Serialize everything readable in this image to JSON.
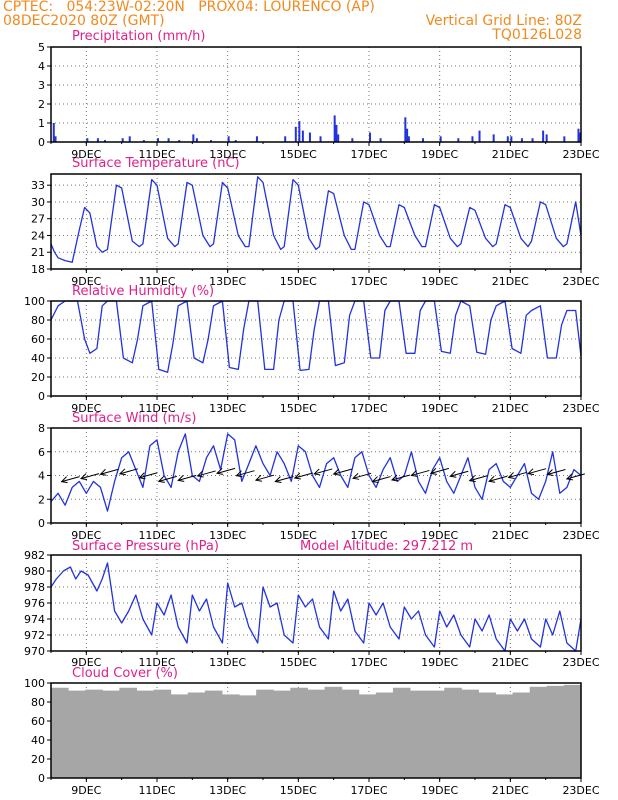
{
  "header": {
    "line1_left": "CPTEC:   054:23W-02:20N   PROX04: LOURENCO (AP)",
    "line2_left": "08DEC2020 80Z (GMT)",
    "line2_right": "Vertical Grid Line: 80Z",
    "line3_right": "TQ0126L028",
    "model_altitude": "Model Altitude: 297.212 m"
  },
  "colors": {
    "header": "#f08a1e",
    "panel_title": "#e0208a",
    "series": "#2233dd",
    "cloud_fill": "#a6a6a6"
  },
  "x_axis": {
    "start_day": 8,
    "end_day": 23,
    "ticks": [
      "9DEC",
      "11DEC",
      "13DEC",
      "15DEC",
      "17DEC",
      "19DEC",
      "21DEC",
      "23DEC"
    ],
    "tick_days": [
      9,
      11,
      13,
      15,
      17,
      19,
      21,
      23
    ]
  },
  "chart_data": [
    {
      "type": "bar",
      "title": "Precipitation (mm/h)",
      "ylim": [
        0,
        5
      ],
      "yticks": [
        0,
        1,
        2,
        3,
        4,
        5
      ],
      "x": [
        8.05,
        8.1,
        9.0,
        9.3,
        9.5,
        10.0,
        10.2,
        10.6,
        11.0,
        11.3,
        11.6,
        12.0,
        12.1,
        12.5,
        13.0,
        13.2,
        13.8,
        14.6,
        14.9,
        15.0,
        15.1,
        15.3,
        15.6,
        16.0,
        16.05,
        16.1,
        16.5,
        17.0,
        17.3,
        18.0,
        18.05,
        18.1,
        18.5,
        19.0,
        19.5,
        19.9,
        20.1,
        20.5,
        20.9,
        21.0,
        21.3,
        21.6,
        21.9,
        22.0,
        22.5,
        22.9,
        22.95
      ],
      "values": [
        1.0,
        0.3,
        0.2,
        0.2,
        0.1,
        0.2,
        0.3,
        0.1,
        0.2,
        0.2,
        0.1,
        0.4,
        0.2,
        0.1,
        0.3,
        0.1,
        0.3,
        0.3,
        0.8,
        1.1,
        0.6,
        0.5,
        0.3,
        1.4,
        0.9,
        0.4,
        0.2,
        0.5,
        0.2,
        1.3,
        0.7,
        0.3,
        0.2,
        0.3,
        0.2,
        0.3,
        0.6,
        0.4,
        0.3,
        0.3,
        0.2,
        0.2,
        0.6,
        0.4,
        0.3,
        0.7,
        0.5
      ],
      "grid": true
    },
    {
      "type": "line",
      "title": "Surface Temperature (nC)",
      "ylim": [
        18,
        35
      ],
      "yticks": [
        18,
        21,
        24,
        27,
        30,
        33
      ],
      "x": [
        8.0,
        8.1,
        8.2,
        8.4,
        8.6,
        8.8,
        8.95,
        9.1,
        9.3,
        9.45,
        9.6,
        9.85,
        10.0,
        10.3,
        10.5,
        10.6,
        10.85,
        11.0,
        11.3,
        11.5,
        11.6,
        11.85,
        12.0,
        12.3,
        12.5,
        12.6,
        12.85,
        13.0,
        13.3,
        13.5,
        13.6,
        13.85,
        14.0,
        14.3,
        14.5,
        14.6,
        14.85,
        15.0,
        15.3,
        15.5,
        15.6,
        15.85,
        16.0,
        16.3,
        16.5,
        16.6,
        16.85,
        17.0,
        17.3,
        17.5,
        17.6,
        17.85,
        18.0,
        18.3,
        18.5,
        18.6,
        18.85,
        19.0,
        19.3,
        19.5,
        19.6,
        19.85,
        20.0,
        20.3,
        20.5,
        20.6,
        20.85,
        21.0,
        21.3,
        21.5,
        21.6,
        21.85,
        22.0,
        22.3,
        22.5,
        22.6,
        22.85,
        23.0
      ],
      "values": [
        22.5,
        21.0,
        20.0,
        19.5,
        19.2,
        25.0,
        29.0,
        28.0,
        22.0,
        21.0,
        21.5,
        33.0,
        32.5,
        23.0,
        22.0,
        22.5,
        34.0,
        33.0,
        23.5,
        22.0,
        22.5,
        33.5,
        33.0,
        24.0,
        22.0,
        22.5,
        33.5,
        32.5,
        24.0,
        22.0,
        22.0,
        34.5,
        33.5,
        24.0,
        21.5,
        22.0,
        34.0,
        33.0,
        23.5,
        21.5,
        22.0,
        32.0,
        31.5,
        24.0,
        21.5,
        21.5,
        30.0,
        29.5,
        24.0,
        22.0,
        22.0,
        29.5,
        29.0,
        24.0,
        22.0,
        22.0,
        29.5,
        29.0,
        23.5,
        22.0,
        22.5,
        29.0,
        28.5,
        23.5,
        22.0,
        22.5,
        29.5,
        29.0,
        23.5,
        22.0,
        23.0,
        30.0,
        29.5,
        23.5,
        22.0,
        22.5,
        30.0,
        24.0
      ],
      "grid": true
    },
    {
      "type": "line",
      "title": "Relative Humidity (%)",
      "ylim": [
        0,
        100
      ],
      "yticks": [
        0,
        20,
        40,
        60,
        80,
        100
      ],
      "x": [
        8.0,
        8.2,
        8.4,
        8.6,
        8.75,
        8.95,
        9.1,
        9.3,
        9.45,
        9.6,
        9.85,
        10.05,
        10.3,
        10.45,
        10.6,
        10.85,
        11.05,
        11.3,
        11.45,
        11.6,
        11.85,
        12.05,
        12.3,
        12.45,
        12.6,
        12.85,
        13.05,
        13.3,
        13.45,
        13.6,
        13.85,
        14.05,
        14.3,
        14.45,
        14.6,
        14.85,
        15.05,
        15.3,
        15.45,
        15.6,
        15.85,
        16.05,
        16.3,
        16.45,
        16.6,
        16.85,
        17.05,
        17.3,
        17.45,
        17.6,
        17.85,
        18.05,
        18.3,
        18.45,
        18.6,
        18.85,
        19.05,
        19.3,
        19.45,
        19.6,
        19.85,
        20.05,
        20.3,
        20.45,
        20.6,
        20.85,
        21.05,
        21.3,
        21.45,
        21.6,
        21.85,
        22.05,
        22.3,
        22.45,
        22.6,
        22.85,
        23.0
      ],
      "values": [
        80,
        95,
        100,
        100,
        100,
        60,
        45,
        50,
        95,
        100,
        100,
        40,
        35,
        60,
        95,
        100,
        28,
        25,
        55,
        95,
        100,
        40,
        35,
        60,
        95,
        100,
        30,
        28,
        70,
        100,
        100,
        28,
        28,
        80,
        100,
        100,
        27,
        28,
        70,
        100,
        100,
        32,
        35,
        85,
        100,
        100,
        40,
        40,
        90,
        100,
        100,
        45,
        45,
        90,
        100,
        100,
        47,
        45,
        85,
        100,
        95,
        46,
        44,
        80,
        95,
        100,
        50,
        45,
        85,
        90,
        95,
        40,
        40,
        75,
        90,
        90,
        42
      ],
      "grid": true
    },
    {
      "type": "line",
      "title": "Surface Wind (m/s)",
      "ylim": [
        0,
        8
      ],
      "yticks": [
        0,
        2,
        4,
        6,
        8
      ],
      "x": [
        8.0,
        8.2,
        8.4,
        8.6,
        8.8,
        9.0,
        9.2,
        9.4,
        9.6,
        9.8,
        10.0,
        10.2,
        10.4,
        10.6,
        10.8,
        11.0,
        11.2,
        11.4,
        11.6,
        11.8,
        12.0,
        12.2,
        12.4,
        12.6,
        12.8,
        13.0,
        13.2,
        13.4,
        13.6,
        13.8,
        14.0,
        14.2,
        14.4,
        14.6,
        14.8,
        15.0,
        15.2,
        15.4,
        15.6,
        15.8,
        16.0,
        16.2,
        16.4,
        16.6,
        16.8,
        17.0,
        17.2,
        17.4,
        17.6,
        17.8,
        18.0,
        18.2,
        18.4,
        18.6,
        18.8,
        19.0,
        19.2,
        19.4,
        19.6,
        19.8,
        20.0,
        20.2,
        20.4,
        20.6,
        20.8,
        21.0,
        21.2,
        21.4,
        21.6,
        21.8,
        22.0,
        22.2,
        22.4,
        22.6,
        22.8,
        23.0
      ],
      "values": [
        1.8,
        2.5,
        1.5,
        3.0,
        3.5,
        2.5,
        3.5,
        3.0,
        1.0,
        3.5,
        5.5,
        6.0,
        4.5,
        3.0,
        6.5,
        7.0,
        4.0,
        3.0,
        6.0,
        7.5,
        4.0,
        3.5,
        5.5,
        6.5,
        4.5,
        7.5,
        7.0,
        3.5,
        5.0,
        6.5,
        5.0,
        4.0,
        6.0,
        5.0,
        3.5,
        6.5,
        6.0,
        4.0,
        3.0,
        5.0,
        5.5,
        4.0,
        3.0,
        5.5,
        6.0,
        4.0,
        3.0,
        4.5,
        5.5,
        3.5,
        4.0,
        6.0,
        3.5,
        2.5,
        4.5,
        5.5,
        3.5,
        2.5,
        4.0,
        5.5,
        3.0,
        2.0,
        4.5,
        5.0,
        3.5,
        3.0,
        4.0,
        5.0,
        2.5,
        2.0,
        3.5,
        6.0,
        2.5,
        3.0,
        4.5,
        4.0
      ],
      "wind_barbs_direction": "from east",
      "grid": true
    },
    {
      "type": "line",
      "title": "Surface Pressure (hPa)",
      "ylim": [
        970,
        982
      ],
      "yticks": [
        970,
        972,
        974,
        976,
        978,
        980,
        982
      ],
      "x": [
        8.0,
        8.15,
        8.35,
        8.55,
        8.7,
        8.85,
        9.05,
        9.3,
        9.45,
        9.6,
        9.8,
        10.0,
        10.2,
        10.4,
        10.6,
        10.85,
        11.0,
        11.2,
        11.4,
        11.6,
        11.85,
        12.0,
        12.2,
        12.4,
        12.6,
        12.85,
        13.0,
        13.2,
        13.4,
        13.6,
        13.85,
        14.0,
        14.2,
        14.4,
        14.6,
        14.85,
        15.0,
        15.2,
        15.4,
        15.6,
        15.85,
        16.0,
        16.2,
        16.4,
        16.6,
        16.85,
        17.0,
        17.2,
        17.4,
        17.6,
        17.85,
        18.0,
        18.2,
        18.4,
        18.6,
        18.85,
        19.0,
        19.2,
        19.4,
        19.6,
        19.85,
        20.0,
        20.2,
        20.4,
        20.6,
        20.85,
        21.0,
        21.2,
        21.4,
        21.6,
        21.85,
        22.0,
        22.2,
        22.4,
        22.6,
        22.85,
        23.0
      ],
      "values": [
        978.0,
        979.0,
        980.0,
        980.5,
        979.0,
        980.0,
        979.5,
        977.5,
        979.0,
        981.0,
        975.0,
        973.5,
        975.0,
        977.0,
        974.0,
        972.0,
        976.0,
        974.5,
        977.0,
        973.0,
        971.0,
        977.0,
        975.0,
        976.5,
        973.0,
        971.0,
        978.5,
        975.5,
        976.0,
        973.0,
        971.0,
        978.0,
        975.5,
        976.0,
        972.0,
        971.0,
        977.0,
        975.5,
        976.5,
        973.0,
        971.5,
        977.5,
        975.0,
        976.5,
        972.5,
        971.0,
        976.0,
        974.5,
        976.0,
        973.0,
        971.5,
        975.5,
        974.0,
        975.0,
        972.0,
        970.5,
        975.0,
        973.0,
        974.5,
        972.0,
        970.5,
        974.0,
        972.5,
        974.5,
        971.5,
        970.0,
        974.0,
        972.5,
        974.0,
        971.5,
        970.5,
        974.0,
        972.0,
        975.0,
        971.0,
        970.0,
        974.0
      ],
      "grid": true
    },
    {
      "type": "bar",
      "title": "Cloud Cover (%)",
      "ylim": [
        0,
        100
      ],
      "yticks": [
        0,
        20,
        40,
        60,
        80,
        100
      ],
      "x": [
        8.0,
        8.5,
        9.0,
        9.5,
        10.0,
        10.5,
        11.0,
        11.5,
        12.0,
        12.5,
        13.0,
        13.5,
        14.0,
        14.5,
        15.0,
        15.5,
        16.0,
        16.5,
        17.0,
        17.5,
        18.0,
        18.5,
        19.0,
        19.5,
        20.0,
        20.5,
        21.0,
        21.5,
        22.0,
        22.5,
        23.0
      ],
      "values": [
        95,
        92,
        93,
        92,
        95,
        92,
        93,
        88,
        90,
        92,
        88,
        87,
        93,
        92,
        95,
        93,
        96,
        93,
        88,
        90,
        95,
        92,
        92,
        95,
        93,
        90,
        88,
        90,
        96,
        97,
        98
      ],
      "grid": true
    }
  ]
}
